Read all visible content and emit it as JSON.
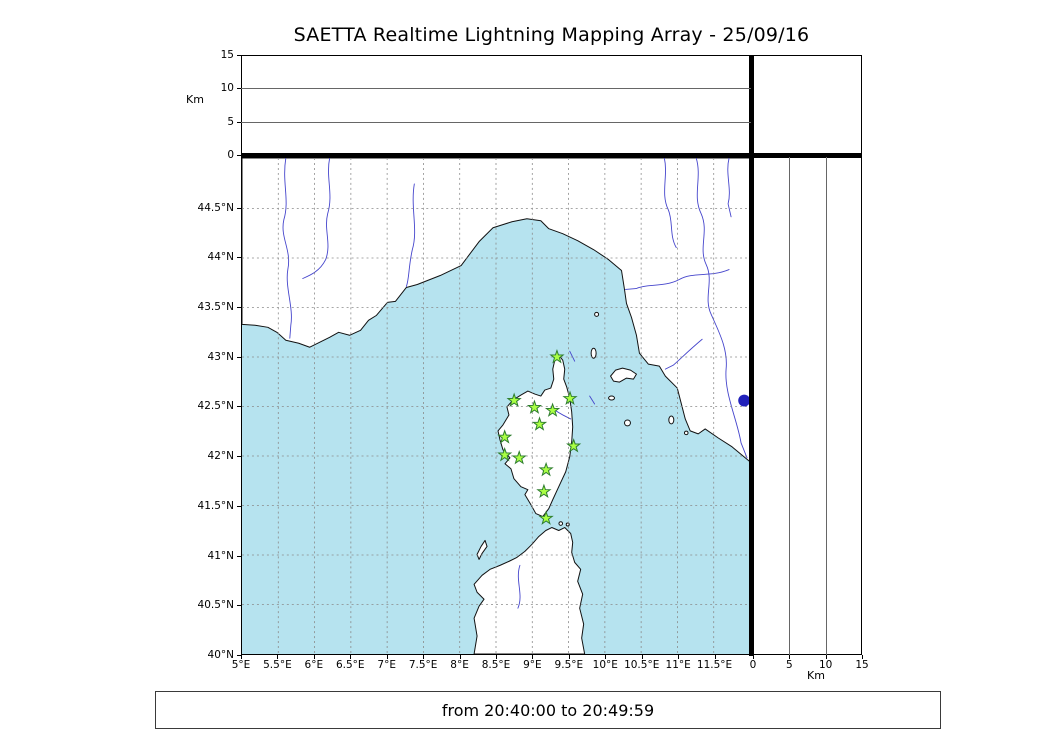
{
  "title": "SAETTA Realtime Lightning Mapping Array - 25/09/16",
  "footer": {
    "time_range": "from 20:40:00 to 20:49:59"
  },
  "axes": {
    "alt_top": {
      "unit": "Km",
      "ticks": [
        {
          "v": 0,
          "label": "0"
        },
        {
          "v": 5,
          "label": "5"
        },
        {
          "v": 10,
          "label": "10"
        },
        {
          "v": 15,
          "label": "15"
        }
      ]
    },
    "alt_right": {
      "unit": "Km",
      "ticks": [
        {
          "v": 0,
          "label": "0"
        },
        {
          "v": 5,
          "label": "5"
        },
        {
          "v": 10,
          "label": "10"
        },
        {
          "v": 15,
          "label": "15"
        }
      ]
    },
    "lat": {
      "ticks": [
        {
          "v": 44.5,
          "label": "44.5°N"
        },
        {
          "v": 44,
          "label": "44°N"
        },
        {
          "v": 43.5,
          "label": "43.5°N"
        },
        {
          "v": 43,
          "label": "43°N"
        },
        {
          "v": 42.5,
          "label": "42.5°N"
        },
        {
          "v": 42,
          "label": "42°N"
        },
        {
          "v": 41.5,
          "label": "41.5°N"
        },
        {
          "v": 41,
          "label": "41°N"
        },
        {
          "v": 40.5,
          "label": "40.5°N"
        },
        {
          "v": 40,
          "label": "40°N"
        }
      ]
    },
    "lon": {
      "ticks": [
        {
          "v": 5,
          "label": "5°E"
        },
        {
          "v": 5.5,
          "label": "5.5°E"
        },
        {
          "v": 6,
          "label": "6°E"
        },
        {
          "v": 6.5,
          "label": "6.5°E"
        },
        {
          "v": 7,
          "label": "7°E"
        },
        {
          "v": 7.5,
          "label": "7.5°E"
        },
        {
          "v": 8,
          "label": "8°E"
        },
        {
          "v": 8.5,
          "label": "8.5°E"
        },
        {
          "v": 9,
          "label": "9°E"
        },
        {
          "v": 9.5,
          "label": "9.5°E"
        },
        {
          "v": 10,
          "label": "10°E"
        },
        {
          "v": 10.5,
          "label": "10.5°E"
        },
        {
          "v": 11,
          "label": "11°E"
        },
        {
          "v": 11.5,
          "label": "11.5°E"
        }
      ]
    }
  },
  "colors": {
    "sea": "#b6e3ef",
    "land": "#ffffff",
    "coast": "#111111",
    "river": "#4545cc",
    "grid": "#8a8a8a",
    "station_fill": "#aaff44",
    "station_edge": "#2e7d2e",
    "lake": "#2222bb"
  },
  "chart_data": {
    "type": "scatter",
    "title": "SAETTA Realtime Lightning Mapping Array - 25/09/16",
    "subtitle": "from 20:40:00 to 20:49:59",
    "map": {
      "lon_range": [
        5,
        12
      ],
      "lat_range": [
        40,
        45.01
      ],
      "grid_interval_deg": 0.5,
      "region": "Corsica, Ligurian and Tyrrhenian Sea, SE France, W Italy, N Sardinia"
    },
    "altitude_km_range": [
      0,
      15
    ],
    "altitude_ticks_km": [
      0,
      5,
      10,
      15
    ],
    "lightning_points": [],
    "stations": [
      {
        "lon": 9.34,
        "lat": 43.0
      },
      {
        "lon": 8.75,
        "lat": 42.56
      },
      {
        "lon": 9.03,
        "lat": 42.49
      },
      {
        "lon": 9.28,
        "lat": 42.46
      },
      {
        "lon": 9.52,
        "lat": 42.58
      },
      {
        "lon": 9.1,
        "lat": 42.32
      },
      {
        "lon": 8.62,
        "lat": 42.19
      },
      {
        "lon": 9.57,
        "lat": 42.1
      },
      {
        "lon": 8.62,
        "lat": 42.01
      },
      {
        "lon": 8.82,
        "lat": 41.98
      },
      {
        "lon": 9.19,
        "lat": 41.86
      },
      {
        "lon": 9.16,
        "lat": 41.64
      },
      {
        "lon": 9.19,
        "lat": 41.37
      }
    ],
    "lake_marker": {
      "lon": 11.92,
      "lat": 42.56
    }
  }
}
